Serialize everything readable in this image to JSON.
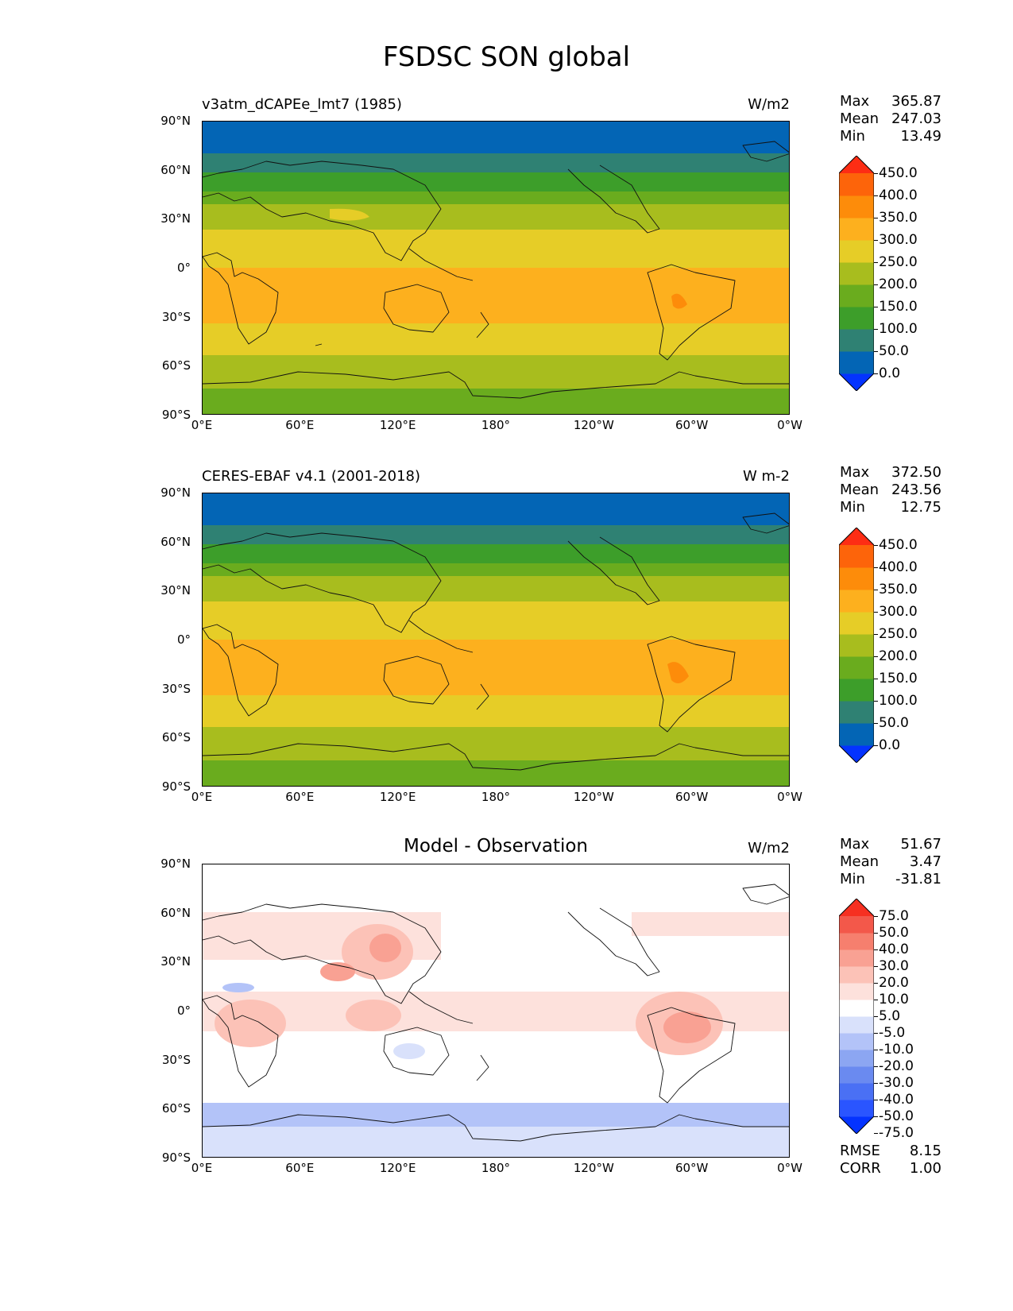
{
  "figure_title": "FSDSC SON global",
  "panels": [
    {
      "title": "v3atm_dCAPEe_lmt7 (1985)",
      "units": "W/m2",
      "stats": {
        "max_label": "Max",
        "max": "365.87",
        "mean_label": "Mean",
        "mean": "247.03",
        "min_label": "Min",
        "min": "13.49"
      },
      "colorbar_labels": [
        "450.0",
        "400.0",
        "350.0",
        "300.0",
        "250.0",
        "200.0",
        "150.0",
        "100.0",
        "50.0",
        "0.0"
      ]
    },
    {
      "title": "CERES-EBAF v4.1 (2001-2018)",
      "units": "W m-2",
      "stats": {
        "max_label": "Max",
        "max": "372.50",
        "mean_label": "Mean",
        "mean": "243.56",
        "min_label": "Min",
        "min": "12.75"
      },
      "colorbar_labels": [
        "450.0",
        "400.0",
        "350.0",
        "300.0",
        "250.0",
        "200.0",
        "150.0",
        "100.0",
        "50.0",
        "0.0"
      ]
    },
    {
      "title": "Model - Observation",
      "units": "W/m2",
      "stats": {
        "max_label": "Max",
        "max": "51.67",
        "mean_label": "Mean",
        "mean": "3.47",
        "min_label": "Min",
        "min": "-31.81"
      },
      "colorbar_labels": [
        "75.0",
        "50.0",
        "40.0",
        "30.0",
        "20.0",
        "10.0",
        "5.0",
        "-5.0",
        "-10.0",
        "-20.0",
        "-30.0",
        "-40.0",
        "-50.0",
        "-75.0"
      ],
      "rmse_label": "RMSE",
      "rmse": "8.15",
      "corr_label": "CORR",
      "corr": "1.00"
    }
  ],
  "lat_ticks": [
    "90°N",
    "60°N",
    "30°N",
    "0°",
    "30°S",
    "60°S",
    "90°S"
  ],
  "lon_ticks": [
    "0°E",
    "60°E",
    "120°E",
    "180°",
    "120°W",
    "60°W",
    "0°W"
  ],
  "colors": {
    "abs": [
      "#0433ff",
      "#0365b5",
      "#2f8173",
      "#3d9e2a",
      "#6aac1e",
      "#a8bd1e",
      "#e6cd27",
      "#fdb01e",
      "#fd8c0a",
      "#fd640a",
      "#fd2d14"
    ],
    "diff": [
      "#0433ff",
      "#2a55ff",
      "#4a70f4",
      "#6a8af0",
      "#8ca6f2",
      "#b3c3f8",
      "#d9e1fb",
      "#ffffff",
      "#fde1dc",
      "#fcc2b7",
      "#f9a193",
      "#f67f6e",
      "#f3584a",
      "#f63021"
    ]
  }
}
